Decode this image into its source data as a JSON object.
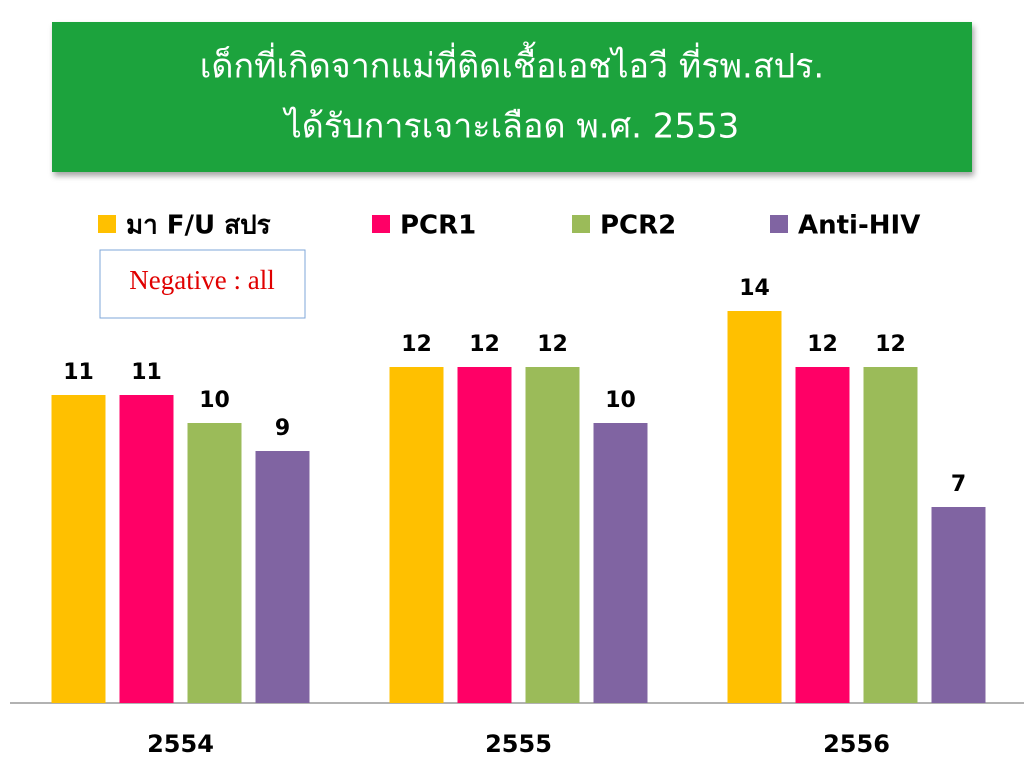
{
  "chart_data": {
    "type": "bar",
    "title": [
      "เด็กที่เกิดจากแม่ที่ติดเชื้อเอชไอวี ที่รพ.สปร.",
      "ได้รับการเจาะเลือด พ.ศ. 2553"
    ],
    "annotation": "Negative : all",
    "categories": [
      "2554",
      "2555",
      "2556"
    ],
    "series": [
      {
        "name": "มา F/U สปร",
        "color": "#FFC000",
        "values": [
          11,
          12,
          14
        ]
      },
      {
        "name": "PCR1",
        "color": "#FF0066",
        "values": [
          11,
          12,
          12
        ]
      },
      {
        "name": "PCR2",
        "color": "#9BBB59",
        "values": [
          10,
          12,
          12
        ]
      },
      {
        "name": "Anti-HIV",
        "color": "#8064A2",
        "values": [
          9,
          10,
          7
        ]
      }
    ],
    "legend": "top"
  }
}
